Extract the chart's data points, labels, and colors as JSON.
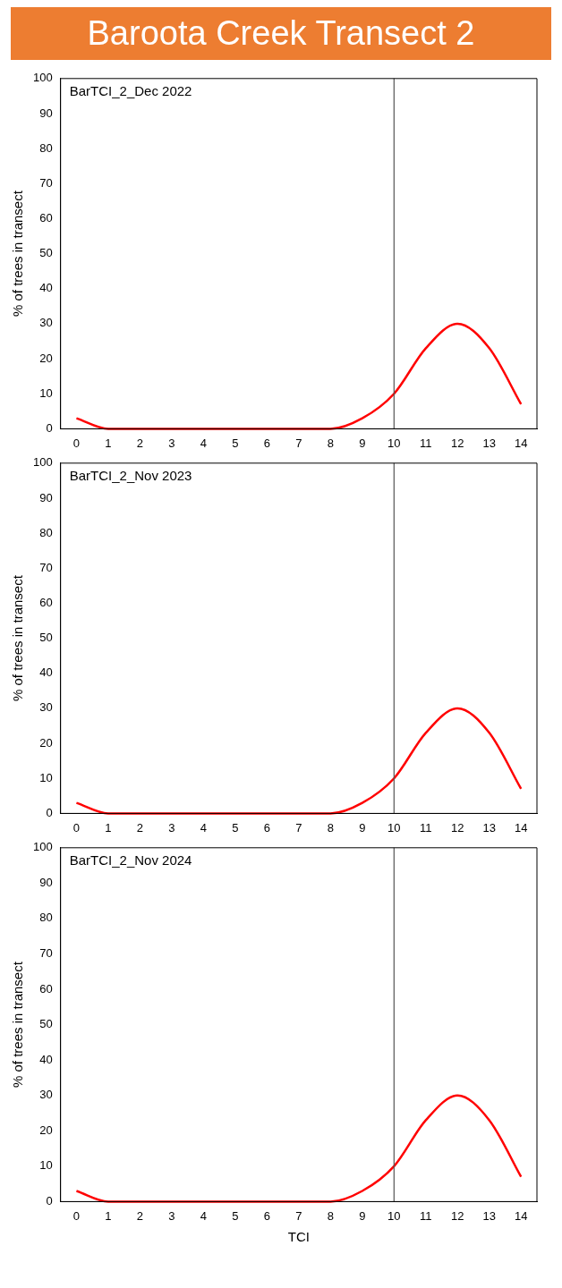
{
  "chart_data": [
    {
      "type": "line",
      "title": "Baroota Creek Transect 2",
      "ylabel": "% of trees in transect",
      "annotations": [
        "BarTCI_2_Dec 2022"
      ],
      "x": [
        0,
        1,
        2,
        3,
        4,
        5,
        6,
        7,
        8,
        9,
        10,
        11,
        12,
        13,
        14
      ],
      "series": [
        {
          "color": "#ff0000",
          "values": [
            3,
            0,
            0,
            0,
            0,
            0,
            0,
            0,
            0,
            3,
            10,
            23,
            30,
            23,
            7
          ]
        }
      ],
      "xlim": [
        -0.5,
        14.5
      ],
      "xticks": [
        0,
        1,
        2,
        3,
        4,
        5,
        6,
        7,
        8,
        9,
        10,
        11,
        12,
        13,
        14
      ],
      "ylim": [
        0,
        100
      ],
      "yticks": [
        0,
        10,
        20,
        30,
        40,
        50,
        60,
        70,
        80,
        90,
        100
      ],
      "ref_lines": [
        {
          "axis": "x",
          "value": 10,
          "color": "#555555"
        }
      ],
      "marker": "none",
      "grid": false,
      "legend": false
    },
    {
      "type": "line",
      "ylabel": "% of trees in transect",
      "annotations": [
        "BarTCI_2_Nov 2023"
      ],
      "x": [
        0,
        1,
        2,
        3,
        4,
        5,
        6,
        7,
        8,
        9,
        10,
        11,
        12,
        13,
        14
      ],
      "series": [
        {
          "color": "#ff0000",
          "values": [
            3,
            0,
            0,
            0,
            0,
            0,
            0,
            0,
            0,
            3,
            10,
            23,
            30,
            23,
            7
          ]
        }
      ],
      "xlim": [
        -0.5,
        14.5
      ],
      "xticks": [
        0,
        1,
        2,
        3,
        4,
        5,
        6,
        7,
        8,
        9,
        10,
        11,
        12,
        13,
        14
      ],
      "ylim": [
        0,
        100
      ],
      "yticks": [
        0,
        10,
        20,
        30,
        40,
        50,
        60,
        70,
        80,
        90,
        100
      ],
      "ref_lines": [
        {
          "axis": "x",
          "value": 10,
          "color": "#555555"
        }
      ],
      "marker": "none",
      "grid": false,
      "legend": false
    },
    {
      "type": "line",
      "xlabel": "TCI",
      "ylabel": "% of trees in transect",
      "annotations": [
        "BarTCI_2_Nov 2024"
      ],
      "x": [
        0,
        1,
        2,
        3,
        4,
        5,
        6,
        7,
        8,
        9,
        10,
        11,
        12,
        13,
        14
      ],
      "series": [
        {
          "color": "#ff0000",
          "values": [
            3,
            0,
            0,
            0,
            0,
            0,
            0,
            0,
            0,
            3,
            10,
            23,
            30,
            23,
            7
          ]
        }
      ],
      "xlim": [
        -0.5,
        14.5
      ],
      "xticks": [
        0,
        1,
        2,
        3,
        4,
        5,
        6,
        7,
        8,
        9,
        10,
        11,
        12,
        13,
        14
      ],
      "ylim": [
        0,
        100
      ],
      "yticks": [
        0,
        10,
        20,
        30,
        40,
        50,
        60,
        70,
        80,
        90,
        100
      ],
      "ref_lines": [
        {
          "axis": "x",
          "value": 10,
          "color": "#555555"
        }
      ],
      "marker": "none",
      "grid": false,
      "legend": false
    }
  ]
}
